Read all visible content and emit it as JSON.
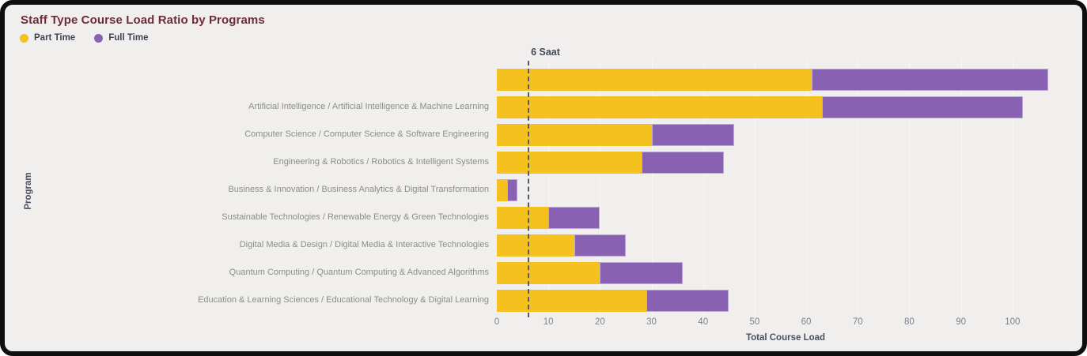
{
  "panel": {
    "title": "Staff Type Course Load Ratio by Programs"
  },
  "chart_data": {
    "type": "bar",
    "orientation": "horizontal",
    "stacked": true,
    "title": "Staff Type Course Load Ratio by Programs",
    "xlabel": "Total Course Load",
    "ylabel": "Program",
    "xlim": [
      0,
      112
    ],
    "xticks": [
      0,
      10,
      20,
      30,
      40,
      50,
      60,
      70,
      80,
      90,
      100
    ],
    "grid": true,
    "legend_position": "top-left",
    "reference_line": {
      "value": 6,
      "label": "6 Saat"
    },
    "categories": [
      "",
      "Artificial Intelligence / Artificial Intelligence & Machine Learning",
      "Computer Science / Computer Science & Software Engineering",
      "Engineering & Robotics / Robotics & Intelligent Systems",
      "Business & Innovation / Business Analytics & Digital Transformation",
      "Sustainable Technologies / Renewable Energy & Green Technologies",
      "Digital Media & Design / Digital Media & Interactive Technologies",
      "Quantum Computing / Quantum Computing & Advanced Algorithms",
      "Education & Learning Sciences / Educational Technology & Digital Learning"
    ],
    "series": [
      {
        "name": "Part Time",
        "color": "#f5c11e",
        "values": [
          61,
          63,
          30,
          28,
          2,
          10,
          15,
          20,
          29
        ]
      },
      {
        "name": "Full Time",
        "color": "#8961b3",
        "values": [
          46,
          39,
          16,
          16,
          2,
          10,
          10,
          16,
          16
        ]
      }
    ],
    "totals": [
      107,
      102,
      46,
      44,
      4,
      20,
      25,
      36,
      45
    ]
  },
  "colors": {
    "panel_background": "#f0efed",
    "panel_border": "#0e0e0e",
    "title": "#6f2b3c",
    "legend_text": "#3e4354",
    "category_label": "#8c8c8a",
    "tick_label": "#7d828f",
    "axis_label": "#4a5064",
    "gridline": "#f8f7f5",
    "reference_line": "#565a64",
    "part_time": "#f5c11e",
    "full_time": "#8961b3"
  }
}
